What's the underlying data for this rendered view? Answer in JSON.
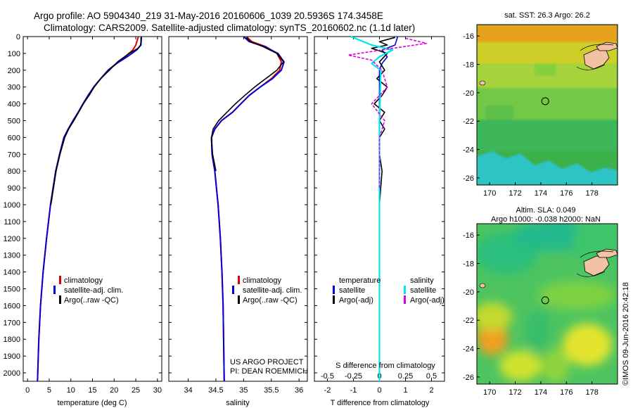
{
  "header": {
    "line1": "Argo profile: AO 5904340_219 31-May-2016 20160606_1039 20.5936S 174.3458E",
    "line2": "Climatology: CARS2009. Satellite-adjusted climatology: synTS_20160602.nc (1.1d later)"
  },
  "colors": {
    "climatology": "#dd0000",
    "satellite": "#0000dd",
    "argo": "#000000",
    "sal_satellite": "#00e5ee",
    "sal_argo": "#dd00dd",
    "land": "#f2c2a2"
  },
  "legends": {
    "profile": [
      "climatology",
      "satellite-adj. clim.",
      "Argo(..raw -QC)"
    ],
    "diff_headers": [
      "temperature",
      "salinity"
    ],
    "diff_items": [
      "satellite",
      "Argo(-adj)",
      "satellite",
      "Argo(-adj)"
    ]
  },
  "project": {
    "line1": "US ARGO PROJECT",
    "line2": "PI: DEAN ROEMMICH"
  },
  "sst_map": {
    "title": "sat. SST: 26.3 Argo: 26.2",
    "x_ticks": [
      "170",
      "172",
      "174",
      "176",
      "178"
    ],
    "y_ticks": [
      "-16",
      "-18",
      "-20",
      "-22",
      "-24",
      "-26"
    ]
  },
  "sla_map": {
    "title1": "Altim. SLA: 0.049",
    "title2": "Argo h1000: -0.038 h2000: NaN",
    "x_ticks": [
      "170",
      "172",
      "174",
      "176",
      "178"
    ],
    "y_ticks": [
      "-16",
      "-18",
      "-20",
      "-22",
      "-24",
      "-26"
    ]
  },
  "argo_position": {
    "lon": 174.3458,
    "lat": -20.5936
  },
  "watermark": "©IMOS 09-Jun-2016 20:42:18",
  "chart_data": [
    {
      "type": "line",
      "xlabel": "temperature (deg C)",
      "xlim": [
        -1,
        31
      ],
      "x_ticks": [
        "0",
        "5",
        "10",
        "15",
        "20",
        "25",
        "30"
      ],
      "ylim": [
        0,
        2050
      ],
      "y_reversed": true,
      "y_ticks": [
        "0",
        "100",
        "200",
        "300",
        "400",
        "500",
        "600",
        "700",
        "800",
        "900",
        "1000",
        "1100",
        "1200",
        "1300",
        "1400",
        "1500",
        "1600",
        "1700",
        "1800",
        "1900",
        "2000"
      ],
      "series": [
        {
          "name": "climatology",
          "x": [
            25.6,
            25.0,
            24.3,
            22.5,
            20.5,
            18.6,
            16.9,
            15.3,
            14.0,
            12.8,
            11.7,
            10.5,
            9.4,
            8.4,
            7.4,
            6.5,
            5.3,
            4.4,
            3.6,
            3.0,
            2.6,
            2.3
          ],
          "y": [
            0,
            50,
            80,
            120,
            160,
            200,
            250,
            300,
            350,
            400,
            450,
            500,
            550,
            600,
            700,
            800,
            1000,
            1200,
            1400,
            1600,
            1800,
            2050
          ]
        },
        {
          "name": "satellite-adj. clim.",
          "x": [
            26.3,
            26.2,
            25.2,
            23.0,
            20.6,
            18.6,
            16.9,
            15.3,
            14.0,
            12.8,
            11.7,
            10.5,
            9.4,
            8.4,
            7.4,
            6.5,
            5.3,
            4.4,
            3.6,
            3.0,
            2.6,
            2.3
          ],
          "y": [
            0,
            50,
            80,
            120,
            160,
            200,
            250,
            300,
            350,
            400,
            450,
            500,
            550,
            600,
            700,
            800,
            1000,
            1200,
            1400,
            1600,
            1800,
            2050
          ]
        },
        {
          "name": "Argo(..raw -QC)",
          "x": [
            26.2,
            26.2,
            26.1,
            25.5,
            23.5,
            20.8,
            18.9,
            16.9,
            15.4,
            14.2,
            12.9,
            11.8,
            10.7,
            9.5,
            8.6,
            7.5,
            6.6,
            5.4
          ],
          "y": [
            5,
            30,
            50,
            70,
            100,
            150,
            200,
            250,
            300,
            350,
            400,
            450,
            500,
            550,
            600,
            700,
            800,
            1000
          ]
        }
      ]
    },
    {
      "type": "line",
      "xlabel": "salinity",
      "xlim": [
        33.65,
        36.15
      ],
      "x_ticks": [
        "34",
        "34.5",
        "35",
        "35.5",
        "36"
      ],
      "ylim": [
        0,
        2050
      ],
      "y_reversed": true,
      "series": [
        {
          "name": "climatology",
          "x": [
            35.05,
            35.15,
            35.4,
            35.6,
            35.68,
            35.65,
            35.5,
            35.3,
            35.1,
            34.95,
            34.8,
            34.6,
            34.48,
            34.42,
            34.43,
            34.48,
            34.54,
            34.58,
            34.61,
            34.63,
            34.65
          ],
          "y": [
            0,
            30,
            60,
            100,
            150,
            200,
            250,
            300,
            350,
            400,
            450,
            500,
            550,
            600,
            700,
            800,
            1000,
            1200,
            1400,
            1600,
            2050
          ]
        },
        {
          "name": "satellite-adj. clim.",
          "x": [
            35.0,
            35.1,
            35.38,
            35.62,
            35.73,
            35.68,
            35.52,
            35.3,
            35.1,
            34.95,
            34.8,
            34.6,
            34.48,
            34.42,
            34.43,
            34.48,
            34.54,
            34.58,
            34.61,
            34.63,
            34.65
          ],
          "y": [
            0,
            30,
            60,
            100,
            150,
            200,
            250,
            300,
            350,
            400,
            450,
            500,
            550,
            600,
            700,
            800,
            1000,
            1200,
            1400,
            1600,
            2050
          ]
        },
        {
          "name": "Argo(..raw -QC)",
          "x": [
            35.05,
            35.12,
            35.35,
            35.6,
            35.72,
            35.6,
            35.4,
            35.2,
            35.02,
            34.85,
            34.7,
            34.55,
            34.45,
            34.42,
            34.44,
            34.5
          ],
          "y": [
            5,
            30,
            60,
            100,
            150,
            200,
            250,
            300,
            350,
            400,
            450,
            500,
            550,
            600,
            700,
            800
          ]
        }
      ]
    },
    {
      "type": "line",
      "xlabel": "T difference from climatology",
      "xlabel_top": "S difference from climatology",
      "xlim": [
        -2.5,
        2.5
      ],
      "x_ticks": [
        "-2",
        "-1",
        "0",
        "1",
        "2"
      ],
      "x_ticks_top": [
        "-0.5",
        "-0.25",
        "0",
        "0.25",
        "0.5"
      ],
      "ylim": [
        0,
        2050
      ],
      "y_reversed": true,
      "series": [
        {
          "name": "temperature satellite",
          "x": [
            0.7,
            0.6,
            0.1,
            0.3,
            0.1,
            0.0,
            0.0,
            0.0,
            0.0,
            0.0
          ],
          "y": [
            0,
            50,
            80,
            120,
            160,
            200,
            500,
            1000,
            1500,
            2050
          ]
        },
        {
          "name": "temperature Argo(-adj)",
          "x": [
            0.6,
            0.0,
            0.3,
            -0.3,
            0.3,
            0.0,
            0.2,
            -0.1,
            0.3,
            0.1,
            -0.2,
            0.2,
            0.0,
            0.2,
            0.0,
            0.0,
            0.1,
            0.0
          ],
          "y": [
            5,
            30,
            50,
            70,
            100,
            150,
            200,
            250,
            300,
            350,
            400,
            450,
            500,
            550,
            600,
            700,
            800,
            1000
          ]
        },
        {
          "name": "salinity satellite",
          "x": [
            -1.1,
            -0.3,
            0.5,
            0.0,
            -0.3,
            0.05,
            0.0,
            0.0,
            0.0,
            0.0
          ],
          "y": [
            0,
            50,
            80,
            120,
            160,
            200,
            500,
            1000,
            1500,
            2050
          ]
        },
        {
          "name": "salinity Argo(-adj)",
          "x": [
            1.0,
            1.8,
            0.5,
            -1.2,
            -0.3,
            0.1,
            0.3,
            -0.3,
            0.2,
            0.0,
            0.0,
            0.0,
            0.0
          ],
          "y": [
            10,
            40,
            70,
            110,
            140,
            200,
            300,
            400,
            500,
            600,
            700,
            800,
            900
          ]
        }
      ]
    }
  ]
}
